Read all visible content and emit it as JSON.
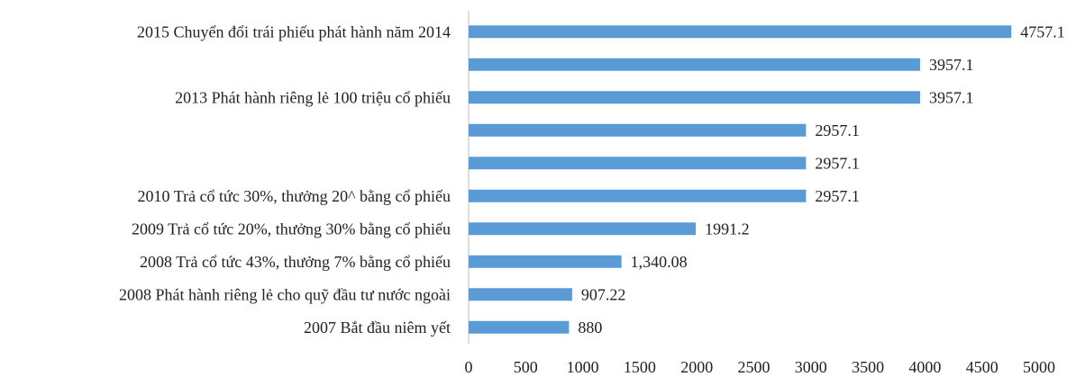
{
  "chart_data": {
    "type": "bar",
    "orientation": "horizontal",
    "categories": [
      "2015 Chuyển đổi trái phiếu phát hành năm 2014",
      null,
      "2013 Phát hành riêng lẻ 100 triệu cổ phiếu",
      null,
      null,
      "2010 Trả cổ tức 30%, thưởng 20^ bằng cổ phiếu",
      "2009 Trả cổ tức 20%, thưởng 30% bằng cổ phiếu",
      "2008 Trả cổ tức 43%, thưởng 7% bằng cổ phiếu",
      "2008 Phát hành riêng lẻ cho quỹ đầu tư nước ngoài",
      "2007 Bắt đầu niêm yết"
    ],
    "values": [
      4757.1,
      3957.1,
      3957.1,
      2957.1,
      2957.1,
      2957.1,
      1991.2,
      1340.08,
      907.22,
      880
    ],
    "value_labels": [
      "4757.1",
      "3957.1",
      "3957.1",
      "2957.1",
      "2957.1",
      "2957.1",
      "1991.2",
      "1,340.08",
      "907.22",
      "880"
    ],
    "color": "#5b9bd5",
    "xlim": [
      0,
      5000
    ],
    "xticks": [
      0,
      500,
      1000,
      1500,
      2000,
      2500,
      3000,
      3500,
      4000,
      4500,
      5000
    ],
    "grid": false
  }
}
